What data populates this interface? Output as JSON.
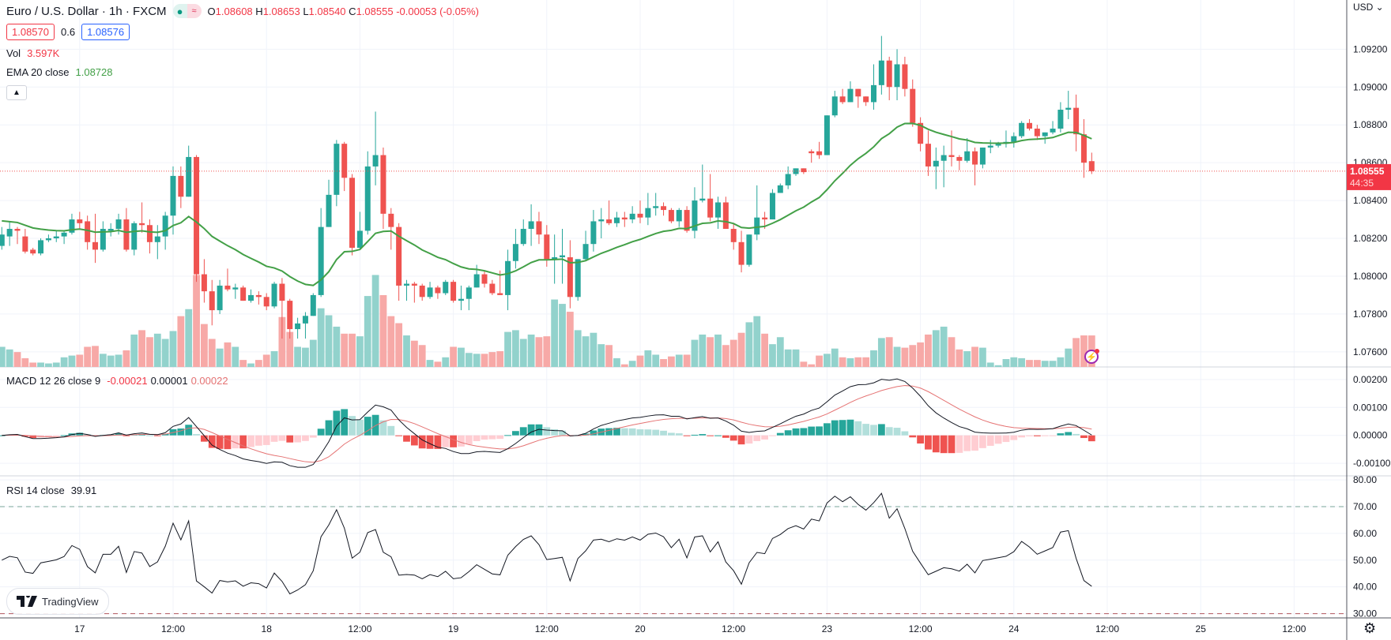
{
  "header": {
    "symbol_title": "Euro / U.S. Dollar · 1h · FXCM",
    "status_dot": "●",
    "status_wave": "≈",
    "o_label": "O",
    "o_value": "1.08608",
    "h_label": "H",
    "h_value": "1.08653",
    "l_label": "L",
    "l_value": "1.08540",
    "c_label": "C",
    "c_value": "1.08555",
    "change": "-0.00053 (-0.05%)",
    "sell_price": "1.08570",
    "spread": "0.6",
    "buy_price": "1.08576",
    "vol_label": "Vol",
    "vol_value": "3.597K",
    "ema_label": "EMA 20 close",
    "ema_value": "1.08728",
    "collapse_icon": "▲"
  },
  "macd_legend": {
    "label": "MACD 12 26 close 9",
    "hist": "-0.00021",
    "macd": "0.00001",
    "signal": "0.00022"
  },
  "rsi_legend": {
    "label": "RSI 14 close",
    "value": "39.91"
  },
  "price_axis": {
    "currency": "USD ⌄",
    "labels": [
      "1.09200",
      "1.09000",
      "1.08800",
      "1.08600",
      "1.08400",
      "1.08200",
      "1.08000",
      "1.07800",
      "1.07600"
    ],
    "current_price": "1.08555",
    "countdown": "44:35"
  },
  "macd_axis": {
    "labels": [
      "0.00200",
      "0.00100",
      "0.00000",
      "-0.00100"
    ]
  },
  "rsi_axis": {
    "labels": [
      "80.00",
      "70.00",
      "60.00",
      "50.00",
      "40.00",
      "30.00"
    ]
  },
  "branding": "TradingView",
  "icons": {
    "settings": "⚙",
    "bolt": "⚡"
  },
  "colors": {
    "up": "#26a69a",
    "down": "#ef5350",
    "ema": "#43a047",
    "macd": "#131722",
    "signal": "#e57373",
    "vol_up": "#92d2cc",
    "vol_down": "#f7a9a7"
  },
  "chart_data": {
    "type": "candlestick",
    "title": "Euro / U.S. Dollar · 1h · FXCM",
    "ylim": [
      1.0752,
      1.0946
    ],
    "time_ticks": [
      {
        "label": "17",
        "bar": 10
      },
      {
        "label": "12:00",
        "bar": 22
      },
      {
        "label": "18",
        "bar": 34
      },
      {
        "label": "12:00",
        "bar": 46
      },
      {
        "label": "19",
        "bar": 58
      },
      {
        "label": "12:00",
        "bar": 70
      },
      {
        "label": "20",
        "bar": 82
      },
      {
        "label": "12:00",
        "bar": 94
      },
      {
        "label": "23",
        "bar": 106
      },
      {
        "label": "12:00",
        "bar": 118
      },
      {
        "label": "24",
        "bar": 130
      },
      {
        "label": "12:00",
        "bar": 142
      },
      {
        "label": "25",
        "bar": 154
      },
      {
        "label": "12:00",
        "bar": 166
      }
    ],
    "ohlc": [
      [
        1.0816,
        1.0826,
        1.0814,
        1.0822
      ],
      [
        1.0821,
        1.0829,
        1.0816,
        1.0825
      ],
      [
        1.0825,
        1.0826,
        1.0817,
        1.0824
      ],
      [
        1.0821,
        1.0825,
        1.0812,
        1.0813
      ],
      [
        1.0814,
        1.0815,
        1.0811,
        1.0812
      ],
      [
        1.0812,
        1.082,
        1.0811,
        1.0819
      ],
      [
        1.0819,
        1.0822,
        1.0818,
        1.082
      ],
      [
        1.082,
        1.0824,
        1.0818,
        1.0821
      ],
      [
        1.0821,
        1.0824,
        1.0817,
        1.0823
      ],
      [
        1.0823,
        1.0833,
        1.0822,
        1.083
      ],
      [
        1.083,
        1.0834,
        1.0825,
        1.0828
      ],
      [
        1.0829,
        1.0832,
        1.0814,
        1.0818
      ],
      [
        1.0818,
        1.0833,
        1.0807,
        1.0814
      ],
      [
        1.0814,
        1.0829,
        1.0813,
        1.0825
      ],
      [
        1.0824,
        1.0828,
        1.0821,
        1.0825
      ],
      [
        1.0825,
        1.0833,
        1.0822,
        1.083
      ],
      [
        1.083,
        1.0836,
        1.0813,
        1.0814
      ],
      [
        1.0814,
        1.0829,
        1.0811,
        1.0828
      ],
      [
        1.0828,
        1.0839,
        1.0823,
        1.0827
      ],
      [
        1.0827,
        1.083,
        1.0812,
        1.0818
      ],
      [
        1.0818,
        1.0827,
        1.0809,
        1.0821
      ],
      [
        1.0821,
        1.0834,
        1.0814,
        1.0832
      ],
      [
        1.0832,
        1.0858,
        1.0822,
        1.0853
      ],
      [
        1.0853,
        1.0858,
        1.0836,
        1.0842
      ],
      [
        1.0842,
        1.0869,
        1.0842,
        1.0863
      ],
      [
        1.0863,
        1.0864,
        1.0797,
        1.0801
      ],
      [
        1.0801,
        1.0809,
        1.0786,
        1.0792
      ],
      [
        1.0792,
        1.0798,
        1.0774,
        1.0782
      ],
      [
        1.0782,
        1.0798,
        1.078,
        1.0795
      ],
      [
        1.0795,
        1.0804,
        1.0792,
        1.0793
      ],
      [
        1.0793,
        1.0796,
        1.0788,
        1.0794
      ],
      [
        1.0794,
        1.0795,
        1.0787,
        1.0787
      ],
      [
        1.0787,
        1.0793,
        1.0786,
        1.079
      ],
      [
        1.079,
        1.0792,
        1.0785,
        1.0789
      ],
      [
        1.0789,
        1.0791,
        1.0782,
        1.0784
      ],
      [
        1.0784,
        1.0797,
        1.0783,
        1.0796
      ],
      [
        1.0796,
        1.0799,
        1.0767,
        1.0787
      ],
      [
        1.0787,
        1.0788,
        1.0767,
        1.0772
      ],
      [
        1.0772,
        1.0778,
        1.0767,
        1.0775
      ],
      [
        1.0775,
        1.0781,
        1.0767,
        1.0779
      ],
      [
        1.0779,
        1.0791,
        1.0779,
        1.079
      ],
      [
        1.079,
        1.0836,
        1.0789,
        1.0826
      ],
      [
        1.0826,
        1.0851,
        1.0826,
        1.0843
      ],
      [
        1.0843,
        1.0872,
        1.0837,
        1.087
      ],
      [
        1.087,
        1.0871,
        1.0845,
        1.0852
      ],
      [
        1.0852,
        1.0854,
        1.0811,
        1.0815
      ],
      [
        1.0815,
        1.0834,
        1.0814,
        1.0824
      ],
      [
        1.0824,
        1.0866,
        1.0822,
        1.0858
      ],
      [
        1.0858,
        1.0887,
        1.0848,
        1.0864
      ],
      [
        1.0864,
        1.0868,
        1.0825,
        1.0833
      ],
      [
        1.0833,
        1.0836,
        1.0814,
        1.0826
      ],
      [
        1.0826,
        1.0828,
        1.0787,
        1.0795
      ],
      [
        1.0795,
        1.0798,
        1.0787,
        1.0796
      ],
      [
        1.0796,
        1.0797,
        1.0786,
        1.0795
      ],
      [
        1.0795,
        1.0796,
        1.0787,
        1.0789
      ],
      [
        1.0789,
        1.0797,
        1.0788,
        1.0794
      ],
      [
        1.0794,
        1.0795,
        1.0788,
        1.0791
      ],
      [
        1.0791,
        1.0798,
        1.079,
        1.0797
      ],
      [
        1.0797,
        1.0798,
        1.0786,
        1.0787
      ],
      [
        1.0787,
        1.0795,
        1.0782,
        1.0788
      ],
      [
        1.0788,
        1.0795,
        1.0782,
        1.0794
      ],
      [
        1.0794,
        1.0806,
        1.0794,
        1.0801
      ],
      [
        1.0801,
        1.0803,
        1.0794,
        1.0796
      ],
      [
        1.0796,
        1.0798,
        1.079,
        1.0791
      ],
      [
        1.0791,
        1.0803,
        1.079,
        1.079
      ],
      [
        1.079,
        1.0814,
        1.0782,
        1.0808
      ],
      [
        1.0808,
        1.0825,
        1.0804,
        1.0817
      ],
      [
        1.0817,
        1.083,
        1.0816,
        1.0825
      ],
      [
        1.0825,
        1.0838,
        1.0816,
        1.0829
      ],
      [
        1.0829,
        1.0834,
        1.0817,
        1.0822
      ],
      [
        1.0822,
        1.0827,
        1.0805,
        1.0809
      ],
      [
        1.0809,
        1.0822,
        1.0796,
        1.081
      ],
      [
        1.081,
        1.0825,
        1.0796,
        1.0811
      ],
      [
        1.081,
        1.0819,
        1.0783,
        1.0789
      ],
      [
        1.0789,
        1.0809,
        1.0787,
        1.0809
      ],
      [
        1.0809,
        1.0824,
        1.0808,
        1.0817
      ],
      [
        1.0817,
        1.0835,
        1.0813,
        1.0829
      ],
      [
        1.0829,
        1.0836,
        1.082,
        1.083
      ],
      [
        1.083,
        1.084,
        1.0827,
        1.0828
      ],
      [
        1.0828,
        1.0834,
        1.0826,
        1.0831
      ],
      [
        1.0831,
        1.0834,
        1.0826,
        1.083
      ],
      [
        1.083,
        1.0837,
        1.0828,
        1.0833
      ],
      [
        1.0833,
        1.084,
        1.0828,
        1.0831
      ],
      [
        1.0831,
        1.0844,
        1.0827,
        1.0836
      ],
      [
        1.0836,
        1.0844,
        1.0832,
        1.0837
      ],
      [
        1.0837,
        1.0839,
        1.0832,
        1.0835
      ],
      [
        1.0835,
        1.0836,
        1.0828,
        1.0829
      ],
      [
        1.0829,
        1.0836,
        1.0826,
        1.0835
      ],
      [
        1.0835,
        1.0837,
        1.0823,
        1.0824
      ],
      [
        1.0824,
        1.0847,
        1.082,
        1.084
      ],
      [
        1.084,
        1.0859,
        1.0839,
        1.0841
      ],
      [
        1.0841,
        1.0854,
        1.0829,
        1.0831
      ],
      [
        1.0831,
        1.0842,
        1.0825,
        1.0839
      ],
      [
        1.0839,
        1.0842,
        1.0825,
        1.0825
      ],
      [
        1.0825,
        1.0828,
        1.0814,
        1.0818
      ],
      [
        1.0818,
        1.0824,
        1.0802,
        1.0806
      ],
      [
        1.0806,
        1.0822,
        1.0805,
        1.0822
      ],
      [
        1.0822,
        1.0848,
        1.0819,
        1.0831
      ],
      [
        1.0831,
        1.0834,
        1.0825,
        1.083
      ],
      [
        1.083,
        1.0846,
        1.083,
        1.0844
      ],
      [
        1.0844,
        1.0849,
        1.0844,
        1.0848
      ],
      [
        1.0848,
        1.0858,
        1.0846,
        1.0854
      ],
      [
        1.0854,
        1.0857,
        1.0853,
        1.0857
      ],
      [
        1.0857,
        1.0857,
        1.0854,
        1.0855
      ],
      [
        1.0866,
        1.0867,
        1.086,
        1.0865
      ],
      [
        1.0866,
        1.0871,
        1.0862,
        1.0864
      ],
      [
        1.0864,
        1.0885,
        1.0864,
        1.0885
      ],
      [
        1.0885,
        1.0898,
        1.0884,
        1.0895
      ],
      [
        1.0895,
        1.0899,
        1.0891,
        1.0892
      ],
      [
        1.0892,
        1.0903,
        1.0892,
        1.0899
      ],
      [
        1.0899,
        1.0899,
        1.0889,
        1.0895
      ],
      [
        1.0895,
        1.0895,
        1.089,
        1.0892
      ],
      [
        1.0892,
        1.0912,
        1.0888,
        1.0901
      ],
      [
        1.0901,
        1.0927,
        1.0896,
        1.0914
      ],
      [
        1.0914,
        1.0916,
        1.0893,
        1.09
      ],
      [
        1.09,
        1.092,
        1.0893,
        1.0912
      ],
      [
        1.0912,
        1.0916,
        1.0895,
        1.0899
      ],
      [
        1.0899,
        1.0904,
        1.0879,
        1.0881
      ],
      [
        1.0881,
        1.0884,
        1.0866,
        1.087
      ],
      [
        1.087,
        1.0877,
        1.0853,
        1.0858
      ],
      [
        1.0858,
        1.0868,
        1.0846,
        1.0861
      ],
      [
        1.0861,
        1.0869,
        1.0847,
        1.0864
      ],
      [
        1.0864,
        1.0877,
        1.0858,
        1.0863
      ],
      [
        1.0863,
        1.0864,
        1.0856,
        1.0861
      ],
      [
        1.0861,
        1.0873,
        1.086,
        1.0866
      ],
      [
        1.0866,
        1.0868,
        1.0848,
        1.0859
      ],
      [
        1.0859,
        1.0868,
        1.0857,
        1.0868
      ],
      [
        1.0868,
        1.0872,
        1.0865,
        1.0869
      ],
      [
        1.0869,
        1.0871,
        1.0868,
        1.087
      ],
      [
        1.087,
        1.0877,
        1.0868,
        1.0871
      ],
      [
        1.0871,
        1.0876,
        1.0868,
        1.0874
      ],
      [
        1.0874,
        1.0882,
        1.0873,
        1.0881
      ],
      [
        1.0881,
        1.0883,
        1.0877,
        1.0878
      ],
      [
        1.0878,
        1.088,
        1.0872,
        1.0874
      ],
      [
        1.0874,
        1.0876,
        1.087,
        1.0876
      ],
      [
        1.0876,
        1.0882,
        1.0875,
        1.0878
      ],
      [
        1.0878,
        1.0892,
        1.0876,
        1.0888
      ],
      [
        1.0888,
        1.0898,
        1.0883,
        1.0889
      ],
      [
        1.0889,
        1.0896,
        1.0866,
        1.0875
      ],
      [
        1.0875,
        1.0883,
        1.0852,
        1.086
      ],
      [
        1.08608,
        1.08653,
        1.0854,
        1.08555
      ]
    ],
    "volume_k": [
      2.3,
      2.0,
      1.7,
      1.0,
      0.5,
      0.5,
      0.4,
      0.5,
      1.1,
      1.3,
      1.4,
      2.3,
      2.4,
      1.5,
      1.3,
      1.4,
      1.9,
      3.7,
      4.2,
      3.4,
      3.8,
      3.2,
      4.1,
      5.8,
      6.6,
      10.5,
      4.9,
      3.2,
      2.1,
      2.8,
      2.3,
      0.8,
      0.4,
      0.8,
      1.4,
      1.8,
      5.7,
      4.0,
      2.3,
      2.2,
      3.1,
      6.7,
      5.9,
      4.6,
      3.8,
      3.8,
      3.5,
      8.1,
      10.5,
      8.2,
      5.8,
      5.0,
      3.6,
      3.0,
      2.5,
      0.8,
      0.6,
      1.1,
      2.3,
      2.2,
      1.6,
      1.5,
      1.5,
      1.7,
      1.8,
      4.0,
      4.2,
      3.2,
      3.7,
      3.4,
      3.5,
      7.7,
      7.2,
      6.3,
      4.2,
      3.5,
      3.9,
      2.6,
      2.5,
      1.0,
      0.3,
      0.7,
      1.3,
      1.9,
      1.4,
      0.9,
      1.2,
      1.4,
      1.4,
      3.1,
      3.7,
      3.4,
      3.7,
      2.5,
      3.1,
      3.9,
      5.1,
      5.8,
      3.8,
      2.6,
      3.4,
      2.0,
      2.0,
      0.6,
      0.3,
      1.3,
      1.5,
      2.1,
      1.1,
      1.0,
      1.1,
      1.1,
      1.9,
      3.3,
      3.4,
      2.3,
      2.2,
      2.5,
      2.8,
      3.7,
      4.2,
      4.6,
      3.4,
      2.0,
      1.8,
      2.3,
      2.2,
      0.5,
      0.2,
      0.9,
      1.1,
      1.0,
      0.8,
      0.8,
      0.7,
      0.7,
      1.1,
      2.1,
      3.3,
      3.6,
      3.597
    ],
    "indicators": {
      "ema": {
        "period": 20,
        "seed": 1.083
      },
      "macd": {
        "fast": 12,
        "slow": 26,
        "signal": 9,
        "ylim": [
          -0.00145,
          0.00245
        ]
      },
      "rsi": {
        "period": 14,
        "ylim": [
          28.4,
          81.5
        ],
        "upper_band": 70,
        "lower_band": 30
      }
    }
  }
}
